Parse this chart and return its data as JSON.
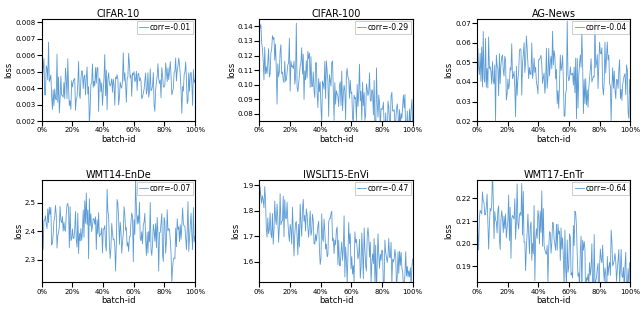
{
  "subplots": [
    {
      "title": "CIFAR-10",
      "corr": "corr=-0.01",
      "ylabel": "loss",
      "xlabel": "batch-id",
      "ylim": [
        0.002,
        0.0082
      ],
      "seed": 42,
      "n_points": 200,
      "base": 0.0042,
      "noise_scale": 0.00085,
      "autocorr": 0.35,
      "trend": 1e-06
    },
    {
      "title": "CIFAR-100",
      "corr": "corr=-0.29",
      "ylabel": "loss",
      "xlabel": "batch-id",
      "ylim": [
        0.075,
        0.145
      ],
      "seed": 101,
      "n_points": 200,
      "base": 0.117,
      "noise_scale": 0.011,
      "autocorr": 0.3,
      "trend": -0.0002
    },
    {
      "title": "AG-News",
      "corr": "corr=-0.04",
      "ylabel": "loss",
      "xlabel": "batch-id",
      "ylim": [
        0.02,
        0.072
      ],
      "seed": 77,
      "n_points": 200,
      "base": 0.05,
      "noise_scale": 0.009,
      "autocorr": 0.25,
      "trend": -5e-05
    },
    {
      "title": "WMT14-EnDe",
      "corr": "corr=-0.07",
      "ylabel": "loss",
      "xlabel": "batch-id",
      "ylim": [
        2.22,
        2.58
      ],
      "seed": 55,
      "n_points": 200,
      "base": 2.43,
      "noise_scale": 0.055,
      "autocorr": 0.3,
      "trend": -0.00025
    },
    {
      "title": "IWSLT15-EnVi",
      "corr": "corr=-0.47",
      "ylabel": "loss",
      "xlabel": "batch-id",
      "ylim": [
        1.52,
        1.92
      ],
      "seed": 88,
      "n_points": 200,
      "base": 1.8,
      "noise_scale": 0.06,
      "autocorr": 0.3,
      "trend": -0.0012
    },
    {
      "title": "WMT17-EnTr",
      "corr": "corr=-0.64",
      "ylabel": "loss",
      "xlabel": "batch-id",
      "ylim": [
        0.183,
        0.228
      ],
      "seed": 33,
      "n_points": 200,
      "base": 0.216,
      "noise_scale": 0.0085,
      "autocorr": 0.3,
      "trend": -0.00016
    }
  ],
  "line_color": "#5B9BD5",
  "legend_fontsize": 5.5,
  "title_fontsize": 7,
  "tick_fontsize": 5,
  "label_fontsize": 6
}
